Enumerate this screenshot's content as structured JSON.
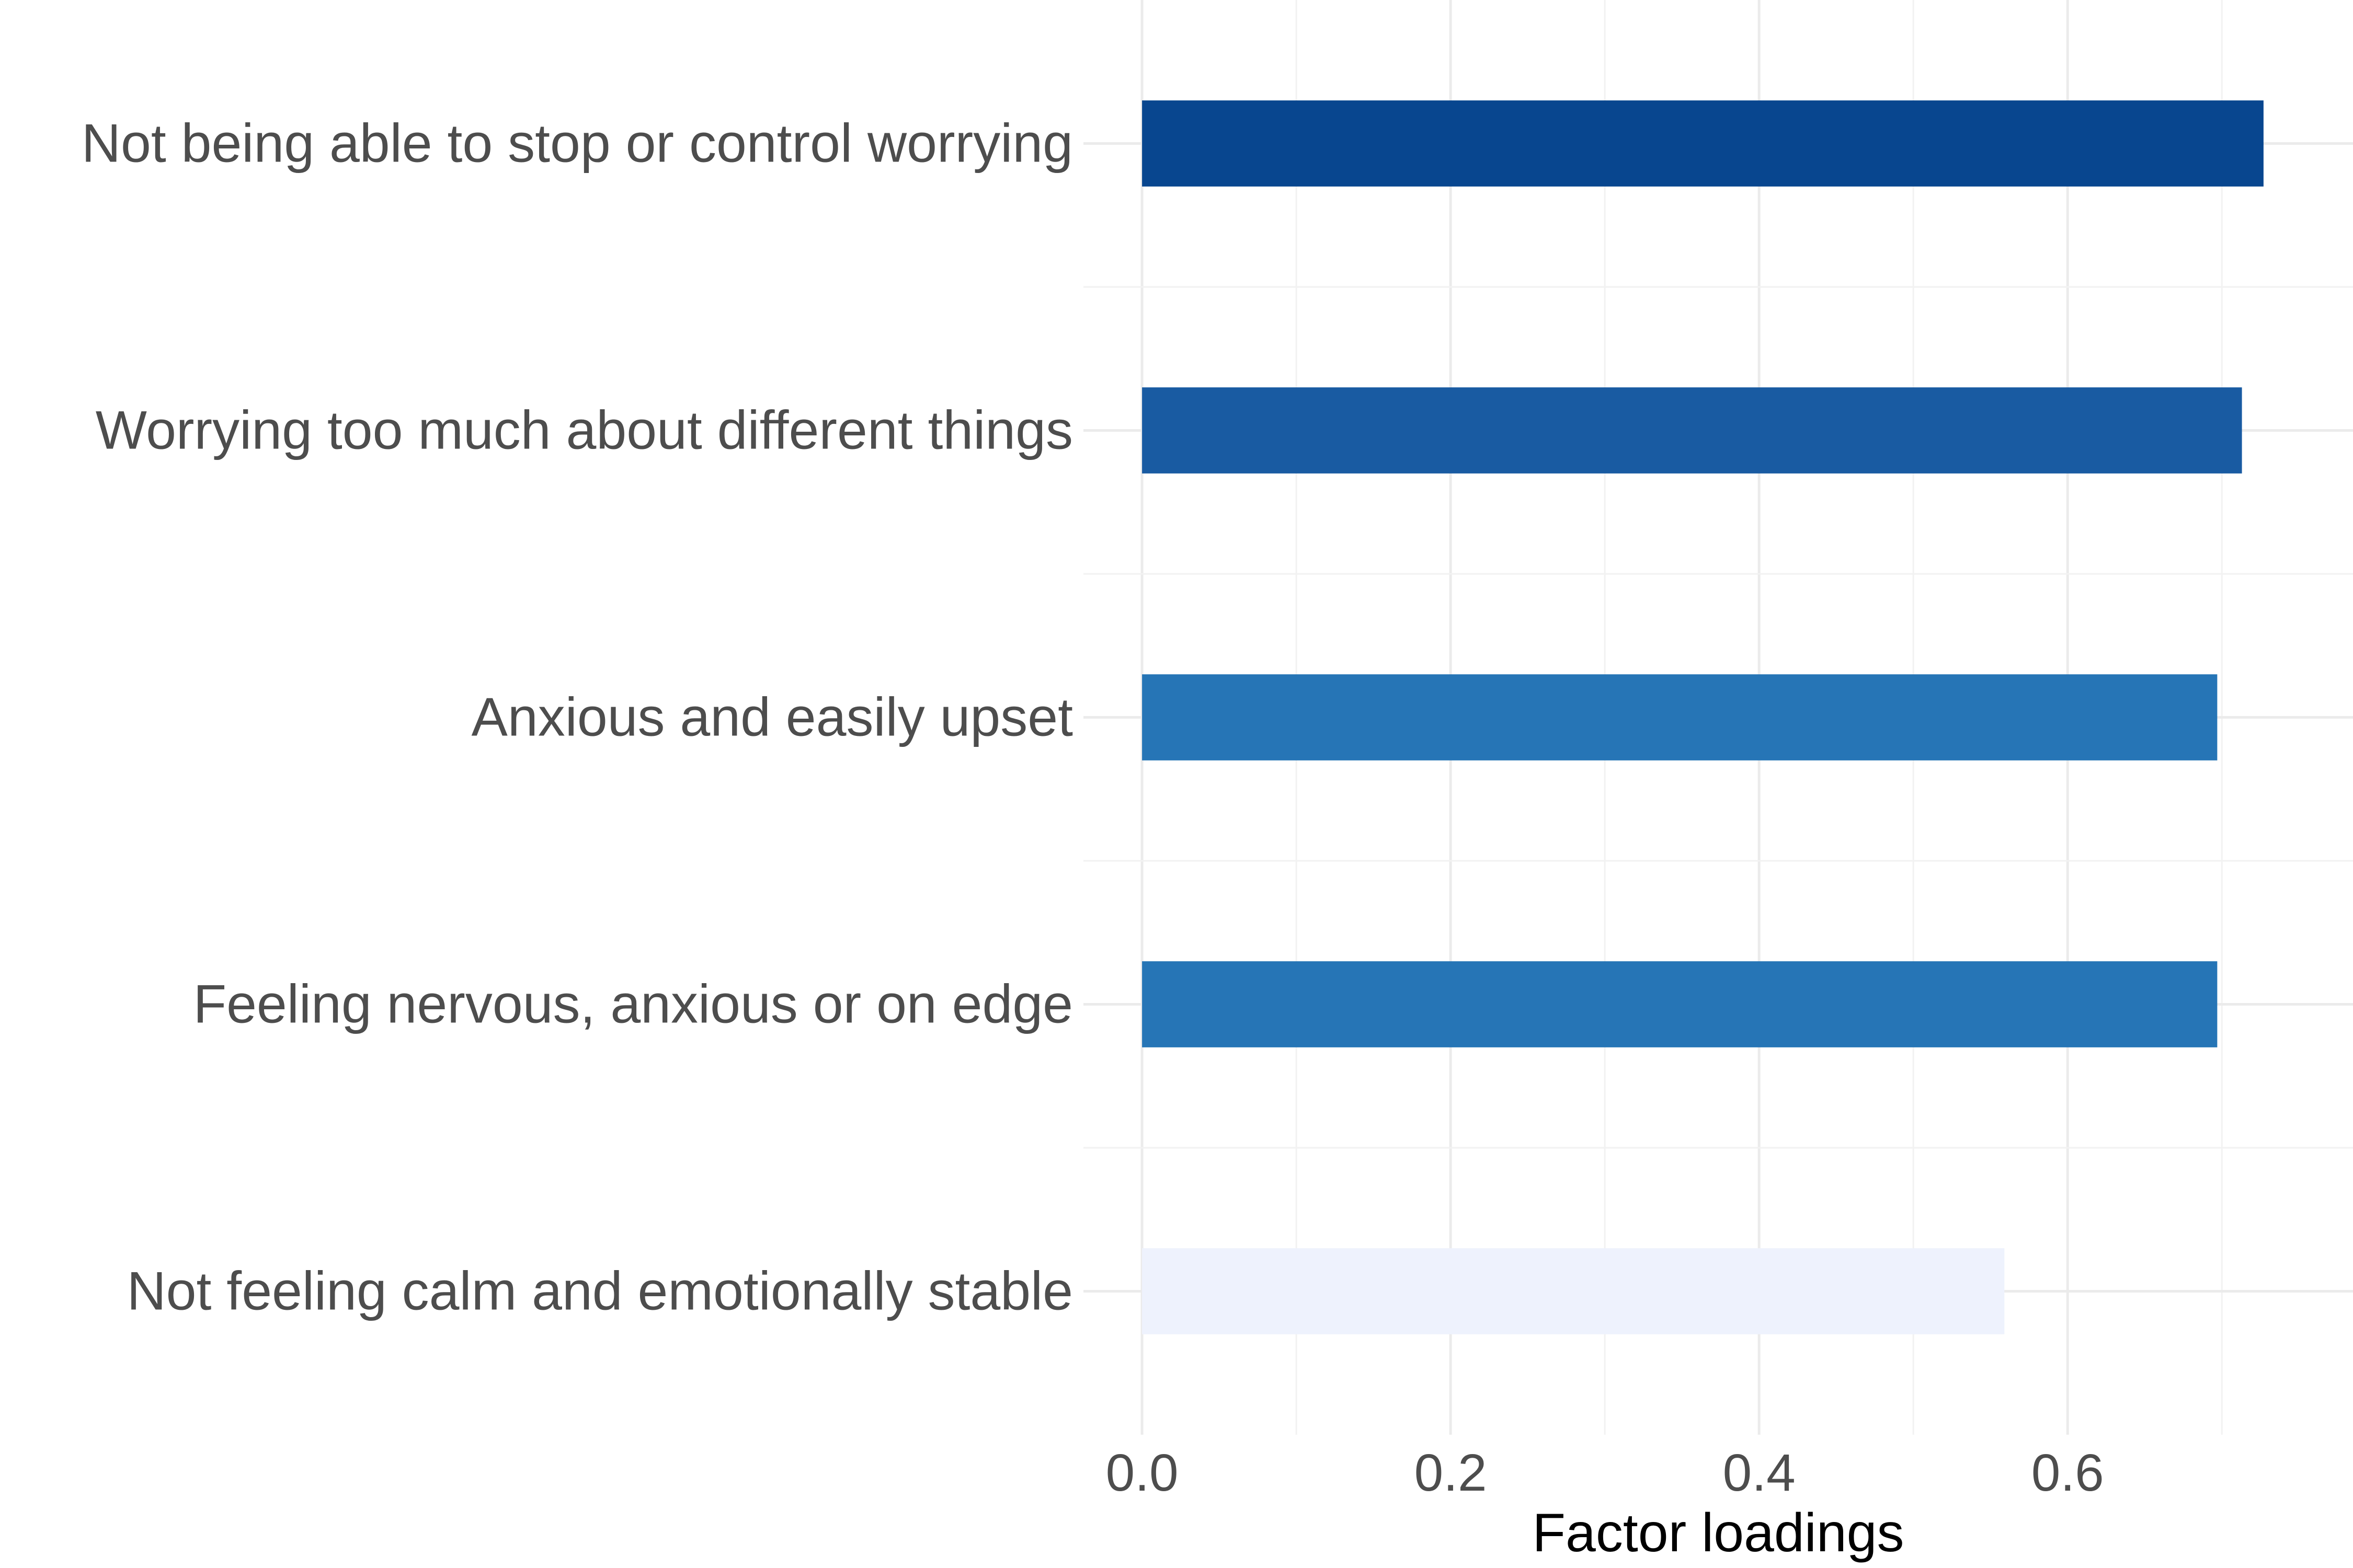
{
  "chart_data": {
    "type": "bar",
    "orientation": "horizontal",
    "categories": [
      "Not being able to stop or control worrying",
      "Worrying too much about different things",
      "Anxious and easily upset",
      "Feeling nervous, anxious or on edge",
      "Not feeling calm and emotionally stable"
    ],
    "values": [
      0.727,
      0.713,
      0.697,
      0.697,
      0.559
    ],
    "colors": [
      "#08468f",
      "#195ba2",
      "#2675b6",
      "#2675b6",
      "#eef2fd"
    ],
    "xlabel": "Factor loadings",
    "ylabel": "",
    "xlim": [
      -0.038,
      0.785
    ],
    "xticks": [
      0.0,
      0.2,
      0.4,
      0.6
    ],
    "xtick_labels": [
      "0.0",
      "0.2",
      "0.4",
      "0.6"
    ],
    "grid": true,
    "legend": "none"
  }
}
